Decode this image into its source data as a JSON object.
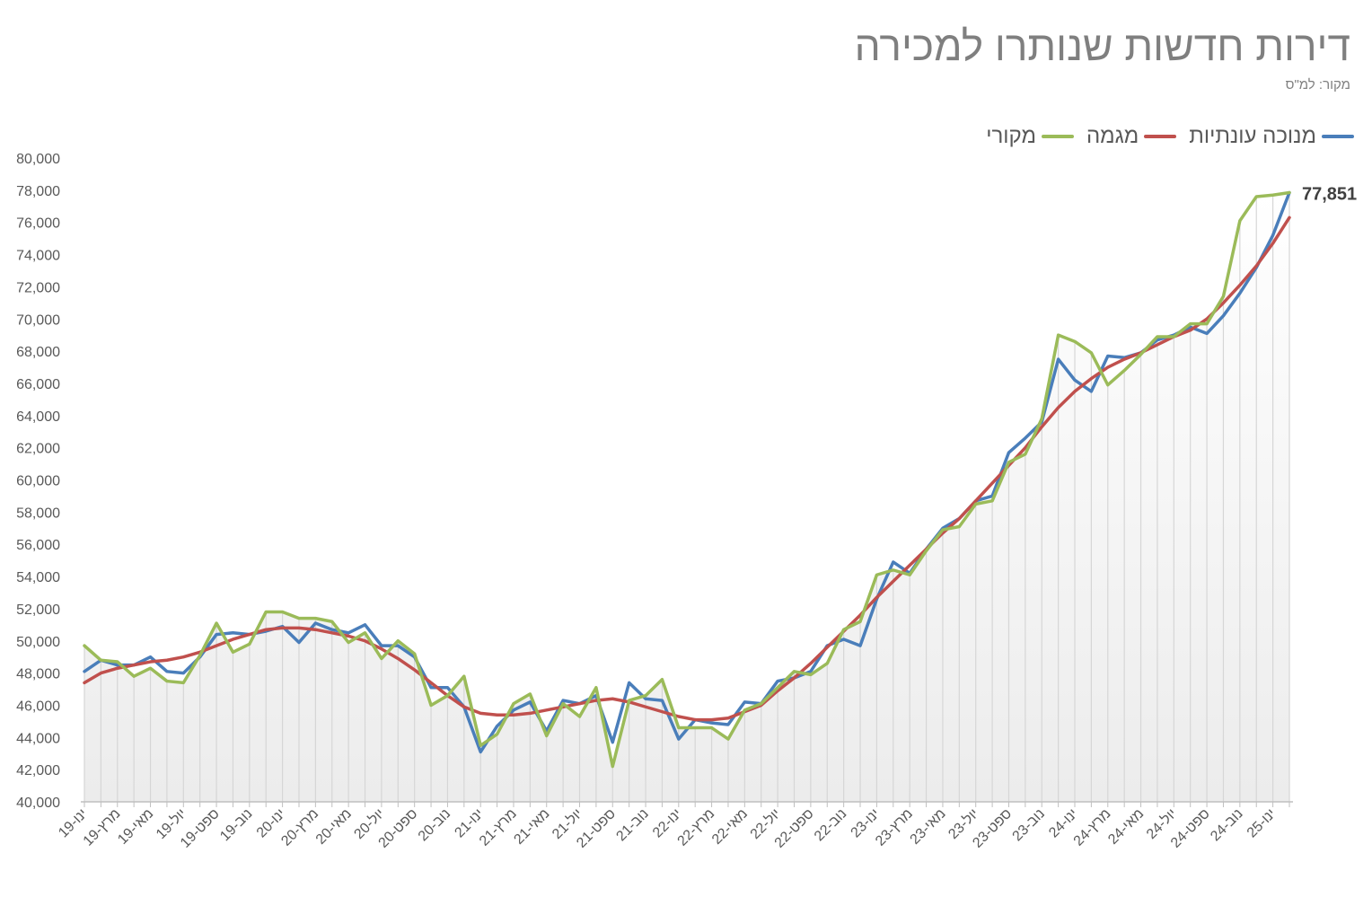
{
  "title": "דירות חדשות שנותרו למכירה",
  "subtitle": "מקור: למ\"ס",
  "chart_data": {
    "type": "line",
    "title": "דירות חדשות שנותרו למכירה",
    "subtitle": "מקור: למ\"ס",
    "xlabel": "",
    "ylabel": "",
    "ylim": [
      40000,
      80000
    ],
    "y_ticks": [
      40000,
      42000,
      44000,
      46000,
      48000,
      50000,
      52000,
      54000,
      56000,
      58000,
      60000,
      62000,
      64000,
      66000,
      68000,
      70000,
      72000,
      74000,
      76000,
      78000,
      80000
    ],
    "y_tick_labels": [
      "40,000",
      "42,000",
      "44,000",
      "46,000",
      "48,000",
      "50,000",
      "52,000",
      "54,000",
      "56,000",
      "58,000",
      "60,000",
      "62,000",
      "64,000",
      "66,000",
      "68,000",
      "70,000",
      "72,000",
      "74,000",
      "76,000",
      "78,000",
      "80,000"
    ],
    "x": [
      "2019-01",
      "2019-02",
      "2019-03",
      "2019-04",
      "2019-05",
      "2019-06",
      "2019-07",
      "2019-08",
      "2019-09",
      "2019-10",
      "2019-11",
      "2019-12",
      "2020-01",
      "2020-02",
      "2020-03",
      "2020-04",
      "2020-05",
      "2020-06",
      "2020-07",
      "2020-08",
      "2020-09",
      "2020-10",
      "2020-11",
      "2020-12",
      "2021-01",
      "2021-02",
      "2021-03",
      "2021-04",
      "2021-05",
      "2021-06",
      "2021-07",
      "2021-08",
      "2021-09",
      "2021-10",
      "2021-11",
      "2021-12",
      "2022-01",
      "2022-02",
      "2022-03",
      "2022-04",
      "2022-05",
      "2022-06",
      "2022-07",
      "2022-08",
      "2022-09",
      "2022-10",
      "2022-11",
      "2022-12",
      "2023-01",
      "2023-02",
      "2023-03",
      "2023-04",
      "2023-05",
      "2023-06",
      "2023-07",
      "2023-08",
      "2023-09",
      "2023-10",
      "2023-11",
      "2023-12",
      "2024-01",
      "2024-02",
      "2024-03",
      "2024-04",
      "2024-05",
      "2024-06",
      "2024-07",
      "2024-08",
      "2024-09",
      "2024-10",
      "2024-11",
      "2024-12",
      "2025-01",
      "2025-02"
    ],
    "x_tick_labels": [
      "ינו-19",
      "מרץ-19",
      "מאי-19",
      "יול-19",
      "ספט-19",
      "נוב-19",
      "ינו-20",
      "מרץ-20",
      "מאי-20",
      "יול-20",
      "ספט-20",
      "נוב-20",
      "ינו-21",
      "מרץ-21",
      "מאי-21",
      "יול-21",
      "ספט-21",
      "נוב-21",
      "ינו-22",
      "מרץ-22",
      "מאי-22",
      "יול-22",
      "ספט-22",
      "נוב-22",
      "ינו-23",
      "מרץ-23",
      "מאי-23",
      "יול-23",
      "ספט-23",
      "נוב-23",
      "ינו-24",
      "מרץ-24",
      "מאי-24",
      "יול-24",
      "ספט-24",
      "נוב-24",
      "ינו-25"
    ],
    "legend": "top-right",
    "grid": false,
    "series": [
      {
        "name": "מנוכה עונתיות",
        "color": "#4a7eba",
        "values": [
          48100,
          48800,
          48500,
          48500,
          49000,
          48100,
          48000,
          49000,
          50400,
          50500,
          50400,
          50600,
          50900,
          49900,
          51100,
          50700,
          50500,
          51000,
          49700,
          49700,
          49000,
          47100,
          47100,
          45900,
          43100,
          44700,
          45700,
          46200,
          44400,
          46300,
          46100,
          46600,
          43700,
          47400,
          46400,
          46300,
          43900,
          45100,
          44900,
          44800,
          46200,
          46100,
          47500,
          47700,
          48100,
          49700,
          50100,
          49700,
          52600,
          54900,
          54200,
          55700,
          57000,
          57600,
          58700,
          59000,
          61700,
          62600,
          63600,
          67500,
          66200,
          65500,
          67700,
          67600,
          67900,
          68700,
          69000,
          69500,
          69100,
          70200,
          71600,
          73200,
          75200,
          77851
        ]
      },
      {
        "name": "מגמה",
        "color": "#c0504d",
        "values": [
          47400,
          48000,
          48300,
          48500,
          48700,
          48800,
          49000,
          49300,
          49700,
          50100,
          50400,
          50700,
          50800,
          50800,
          50700,
          50500,
          50300,
          50000,
          49500,
          48900,
          48200,
          47400,
          46600,
          45900,
          45500,
          45400,
          45400,
          45500,
          45700,
          45900,
          46100,
          46300,
          46400,
          46200,
          45900,
          45600,
          45300,
          45100,
          45100,
          45200,
          45600,
          46000,
          46900,
          47700,
          48600,
          49600,
          50600,
          51600,
          52700,
          53700,
          54700,
          55700,
          56700,
          57600,
          58700,
          59800,
          60900,
          62000,
          63300,
          64500,
          65500,
          66300,
          67000,
          67500,
          67900,
          68400,
          68900,
          69300,
          70000,
          71000,
          72100,
          73300,
          74700,
          76300
        ]
      },
      {
        "name": "מקורי",
        "color": "#9bbb59",
        "values": [
          49700,
          48800,
          48700,
          47800,
          48300,
          47500,
          47400,
          49100,
          51100,
          49300,
          49800,
          51800,
          51800,
          51400,
          51400,
          51200,
          49900,
          50500,
          48900,
          50000,
          49200,
          46000,
          46600,
          47800,
          43500,
          44200,
          46100,
          46700,
          44100,
          46100,
          45300,
          47100,
          42200,
          46300,
          46600,
          47600,
          44600,
          44600,
          44600,
          43900,
          45700,
          46100,
          47100,
          48100,
          47900,
          48600,
          50700,
          51200,
          54100,
          54400,
          54100,
          55600,
          56900,
          57100,
          58500,
          58700,
          61100,
          61600,
          63800,
          69000,
          68600,
          67900,
          65900,
          66800,
          67800,
          68900,
          68900,
          69700,
          69700,
          71400,
          76100,
          77600,
          77700,
          77851
        ]
      }
    ],
    "annotations": [
      {
        "text": "77,851",
        "series": "מקורי",
        "x": "2025-02",
        "y": 77851
      }
    ]
  },
  "colors": {
    "text": "#595959",
    "title": "#7f7f7f",
    "axis": "#bfbfbf",
    "background_gradient": [
      "#ffffff",
      "#ececec"
    ]
  }
}
